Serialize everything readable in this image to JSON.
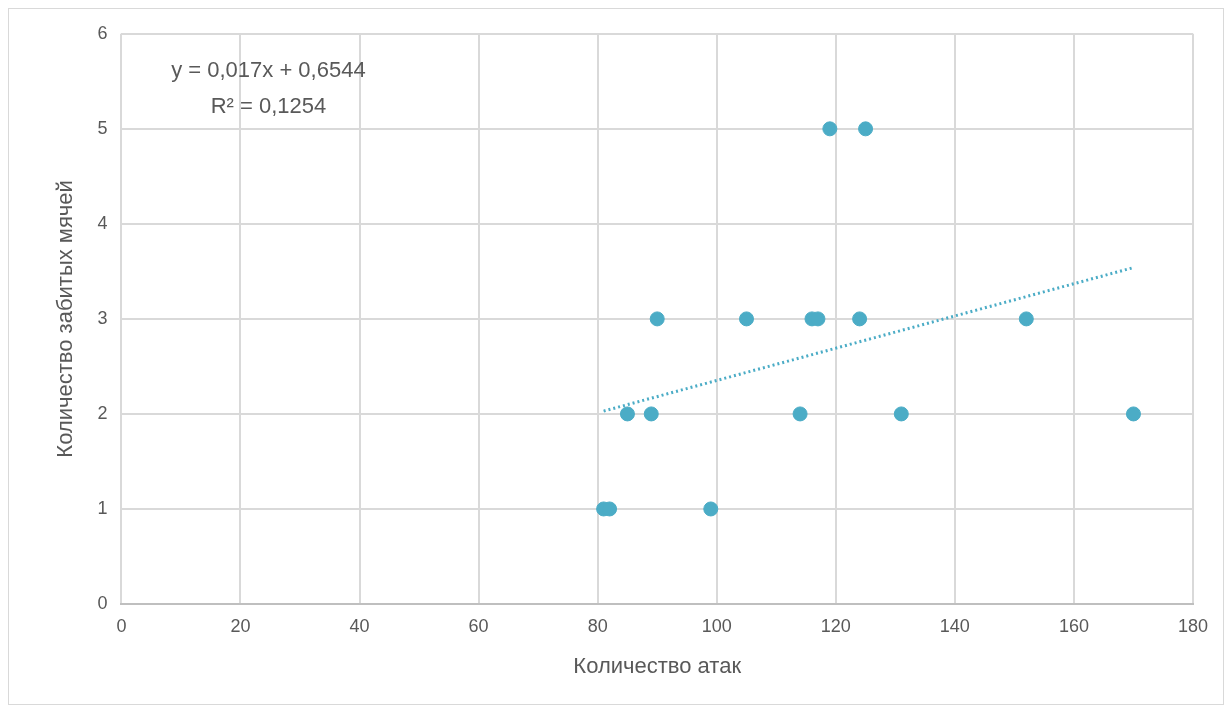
{
  "chart_data": {
    "type": "scatter",
    "xlabel": "Количество атак",
    "ylabel": "Количество забитых мячей",
    "annotations": [
      "y = 0,017x + 0,6544",
      "R² = 0,1254"
    ],
    "series": [
      {
        "type": "scatter",
        "color": "#4bacc6",
        "x": [
          81,
          82,
          85,
          89,
          90,
          99,
          105,
          114,
          116,
          117,
          119,
          124,
          125,
          131,
          152,
          170
        ],
        "values": [
          1,
          1,
          2,
          2,
          3,
          1,
          3,
          2,
          3,
          3,
          5,
          3,
          5,
          2,
          3,
          2
        ],
        "marker": "circle"
      },
      {
        "type": "line",
        "color": "#4bacc6",
        "x": [
          81,
          170
        ],
        "values": [
          2.03,
          3.54
        ],
        "line_style": "dotted",
        "marker": "none"
      }
    ],
    "xlim": [
      0,
      180
    ],
    "xticks": [
      0,
      20,
      40,
      60,
      80,
      100,
      120,
      140,
      160,
      180
    ],
    "ylim": [
      0,
      6
    ],
    "yticks": [
      0,
      1,
      2,
      3,
      4,
      5,
      6
    ],
    "grid": true,
    "legend": false
  }
}
